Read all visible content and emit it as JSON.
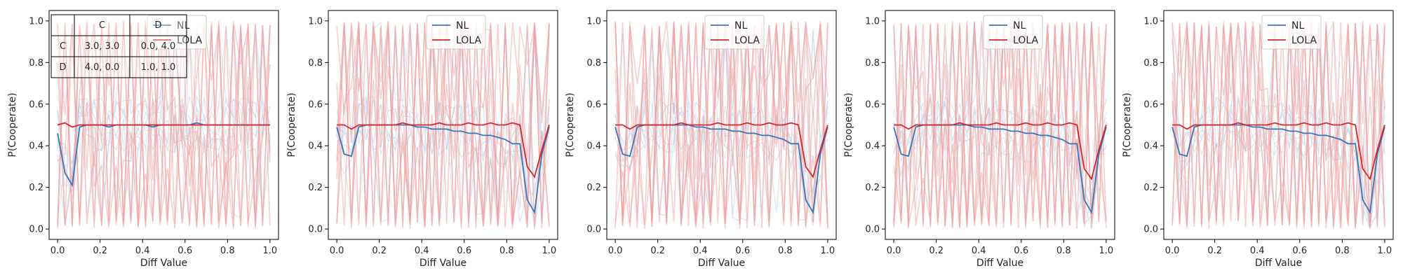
{
  "payoff_table": {
    "header": [
      "",
      "C",
      "D"
    ],
    "rows": [
      [
        "C",
        "3.0, 3.0",
        "0.0, 4.0"
      ],
      [
        "D",
        "4.0, 0.0",
        "1.0, 1.0"
      ]
    ]
  },
  "colors": {
    "NL": "#3a77b7",
    "LOLA": "#d62728",
    "NL_faint": "#c9d6e8",
    "LOLA_faint": "#f0a0a2"
  },
  "chart_data": [
    {
      "type": "line",
      "xlabel": "Diff Value",
      "ylabel": "P(Cooperate)",
      "xlim": [
        -0.04,
        1.04
      ],
      "ylim": [
        -0.05,
        1.05
      ],
      "xticks": [
        "0.0",
        "0.2",
        "0.4",
        "0.6",
        "0.8",
        "1.0"
      ],
      "yticks": [
        "0.0",
        "0.2",
        "0.4",
        "0.6",
        "0.8",
        "1.0"
      ],
      "legend": "upper-center",
      "x": [
        0.0,
        0.0345,
        0.069,
        0.1034,
        0.1379,
        0.1724,
        0.2069,
        0.2414,
        0.2759,
        0.3103,
        0.3448,
        0.3793,
        0.4138,
        0.4483,
        0.4828,
        0.5172,
        0.5517,
        0.5862,
        0.6207,
        0.6552,
        0.6897,
        0.7241,
        0.7586,
        0.7931,
        0.8276,
        0.8621,
        0.8966,
        0.931,
        0.9655,
        1.0
      ],
      "series": [
        {
          "name": "NL",
          "values": [
            0.46,
            0.27,
            0.21,
            0.49,
            0.5,
            0.5,
            0.5,
            0.49,
            0.5,
            0.5,
            0.5,
            0.5,
            0.5,
            0.49,
            0.5,
            0.5,
            0.5,
            0.5,
            0.5,
            0.51,
            0.5,
            0.5,
            0.5,
            0.5,
            0.5,
            0.5,
            0.5,
            0.5,
            0.5,
            0.5
          ]
        },
        {
          "name": "LOLA",
          "values": [
            0.5,
            0.51,
            0.49,
            0.5,
            0.5,
            0.5,
            0.5,
            0.5,
            0.5,
            0.5,
            0.5,
            0.5,
            0.5,
            0.5,
            0.5,
            0.5,
            0.5,
            0.5,
            0.5,
            0.5,
            0.5,
            0.5,
            0.5,
            0.5,
            0.5,
            0.5,
            0.5,
            0.5,
            0.5,
            0.5
          ]
        }
      ]
    },
    {
      "type": "line",
      "xlabel": "Diff Value",
      "ylabel": "P(Cooperate)",
      "xlim": [
        -0.04,
        1.04
      ],
      "ylim": [
        -0.05,
        1.05
      ],
      "xticks": [
        "0.0",
        "0.2",
        "0.4",
        "0.6",
        "0.8",
        "1.0"
      ],
      "yticks": [
        "0.0",
        "0.2",
        "0.4",
        "0.6",
        "0.8",
        "1.0"
      ],
      "legend": "upper-center",
      "x": [
        0.0,
        0.0345,
        0.069,
        0.1034,
        0.1379,
        0.1724,
        0.2069,
        0.2414,
        0.2759,
        0.3103,
        0.3448,
        0.3793,
        0.4138,
        0.4483,
        0.4828,
        0.5172,
        0.5517,
        0.5862,
        0.6207,
        0.6552,
        0.6897,
        0.7241,
        0.7586,
        0.7931,
        0.8276,
        0.8621,
        0.8966,
        0.931,
        0.9655,
        1.0
      ],
      "series": [
        {
          "name": "NL",
          "values": [
            0.49,
            0.36,
            0.35,
            0.49,
            0.5,
            0.5,
            0.5,
            0.5,
            0.5,
            0.5,
            0.5,
            0.49,
            0.49,
            0.48,
            0.48,
            0.48,
            0.47,
            0.47,
            0.46,
            0.46,
            0.45,
            0.45,
            0.44,
            0.43,
            0.41,
            0.41,
            0.14,
            0.08,
            0.36,
            0.49
          ]
        },
        {
          "name": "LOLA",
          "values": [
            0.5,
            0.5,
            0.48,
            0.5,
            0.5,
            0.5,
            0.5,
            0.5,
            0.5,
            0.51,
            0.5,
            0.5,
            0.5,
            0.5,
            0.51,
            0.5,
            0.5,
            0.5,
            0.51,
            0.5,
            0.5,
            0.51,
            0.5,
            0.5,
            0.51,
            0.5,
            0.3,
            0.25,
            0.38,
            0.5
          ]
        }
      ]
    },
    {
      "type": "line",
      "xlabel": "Diff Value",
      "ylabel": "P(Cooperate)",
      "xlim": [
        -0.04,
        1.04
      ],
      "ylim": [
        -0.05,
        1.05
      ],
      "xticks": [
        "0.0",
        "0.2",
        "0.4",
        "0.6",
        "0.8",
        "1.0"
      ],
      "yticks": [
        "0.0",
        "0.2",
        "0.4",
        "0.6",
        "0.8",
        "1.0"
      ],
      "legend": "upper-center",
      "x": [
        0.0,
        0.0345,
        0.069,
        0.1034,
        0.1379,
        0.1724,
        0.2069,
        0.2414,
        0.2759,
        0.3103,
        0.3448,
        0.3793,
        0.4138,
        0.4483,
        0.4828,
        0.5172,
        0.5517,
        0.5862,
        0.6207,
        0.6552,
        0.6897,
        0.7241,
        0.7586,
        0.7931,
        0.8276,
        0.8621,
        0.8966,
        0.931,
        0.9655,
        1.0
      ],
      "series": [
        {
          "name": "NL",
          "values": [
            0.49,
            0.36,
            0.35,
            0.49,
            0.5,
            0.5,
            0.5,
            0.5,
            0.5,
            0.5,
            0.5,
            0.49,
            0.49,
            0.48,
            0.48,
            0.48,
            0.47,
            0.47,
            0.46,
            0.46,
            0.45,
            0.45,
            0.44,
            0.43,
            0.41,
            0.41,
            0.14,
            0.08,
            0.36,
            0.49
          ]
        },
        {
          "name": "LOLA",
          "values": [
            0.5,
            0.5,
            0.48,
            0.5,
            0.5,
            0.5,
            0.5,
            0.5,
            0.5,
            0.51,
            0.5,
            0.5,
            0.5,
            0.5,
            0.51,
            0.5,
            0.5,
            0.5,
            0.51,
            0.5,
            0.5,
            0.51,
            0.5,
            0.5,
            0.51,
            0.5,
            0.3,
            0.25,
            0.38,
            0.5
          ]
        }
      ]
    },
    {
      "type": "line",
      "xlabel": "Diff Value",
      "ylabel": "P(Cooperate)",
      "xlim": [
        -0.04,
        1.04
      ],
      "ylim": [
        -0.05,
        1.05
      ],
      "xticks": [
        "0.0",
        "0.2",
        "0.4",
        "0.6",
        "0.8",
        "1.0"
      ],
      "yticks": [
        "0.0",
        "0.2",
        "0.4",
        "0.6",
        "0.8",
        "1.0"
      ],
      "legend": "upper-center",
      "x": [
        0.0,
        0.0345,
        0.069,
        0.1034,
        0.1379,
        0.1724,
        0.2069,
        0.2414,
        0.2759,
        0.3103,
        0.3448,
        0.3793,
        0.4138,
        0.4483,
        0.4828,
        0.5172,
        0.5517,
        0.5862,
        0.6207,
        0.6552,
        0.6897,
        0.7241,
        0.7586,
        0.7931,
        0.8276,
        0.8621,
        0.8966,
        0.931,
        0.9655,
        1.0
      ],
      "series": [
        {
          "name": "NL",
          "values": [
            0.49,
            0.36,
            0.35,
            0.49,
            0.5,
            0.5,
            0.5,
            0.5,
            0.5,
            0.5,
            0.5,
            0.49,
            0.49,
            0.48,
            0.48,
            0.48,
            0.47,
            0.47,
            0.46,
            0.46,
            0.45,
            0.45,
            0.44,
            0.43,
            0.41,
            0.41,
            0.14,
            0.08,
            0.36,
            0.49
          ]
        },
        {
          "name": "LOLA",
          "values": [
            0.5,
            0.5,
            0.48,
            0.5,
            0.5,
            0.5,
            0.5,
            0.5,
            0.5,
            0.51,
            0.5,
            0.5,
            0.5,
            0.5,
            0.51,
            0.5,
            0.5,
            0.5,
            0.51,
            0.5,
            0.5,
            0.51,
            0.5,
            0.5,
            0.51,
            0.5,
            0.29,
            0.24,
            0.38,
            0.5
          ]
        }
      ]
    },
    {
      "type": "line",
      "xlabel": "Diff Value",
      "ylabel": "P(Cooperate)",
      "xlim": [
        -0.04,
        1.04
      ],
      "ylim": [
        -0.05,
        1.05
      ],
      "xticks": [
        "0.0",
        "0.2",
        "0.4",
        "0.6",
        "0.8",
        "1.0"
      ],
      "yticks": [
        "0.0",
        "0.2",
        "0.4",
        "0.6",
        "0.8",
        "1.0"
      ],
      "legend": "upper-center",
      "x": [
        0.0,
        0.0345,
        0.069,
        0.1034,
        0.1379,
        0.1724,
        0.2069,
        0.2414,
        0.2759,
        0.3103,
        0.3448,
        0.3793,
        0.4138,
        0.4483,
        0.4828,
        0.5172,
        0.5517,
        0.5862,
        0.6207,
        0.6552,
        0.6897,
        0.7241,
        0.7586,
        0.7931,
        0.8276,
        0.8621,
        0.8966,
        0.931,
        0.9655,
        1.0
      ],
      "series": [
        {
          "name": "NL",
          "values": [
            0.49,
            0.36,
            0.35,
            0.49,
            0.5,
            0.5,
            0.5,
            0.5,
            0.5,
            0.5,
            0.5,
            0.49,
            0.49,
            0.48,
            0.48,
            0.48,
            0.47,
            0.47,
            0.46,
            0.46,
            0.45,
            0.45,
            0.44,
            0.43,
            0.41,
            0.41,
            0.14,
            0.08,
            0.36,
            0.49
          ]
        },
        {
          "name": "LOLA",
          "values": [
            0.5,
            0.5,
            0.48,
            0.5,
            0.5,
            0.5,
            0.5,
            0.5,
            0.5,
            0.51,
            0.5,
            0.5,
            0.5,
            0.5,
            0.51,
            0.5,
            0.5,
            0.5,
            0.51,
            0.5,
            0.5,
            0.51,
            0.5,
            0.5,
            0.51,
            0.5,
            0.29,
            0.24,
            0.38,
            0.5
          ]
        }
      ]
    }
  ]
}
